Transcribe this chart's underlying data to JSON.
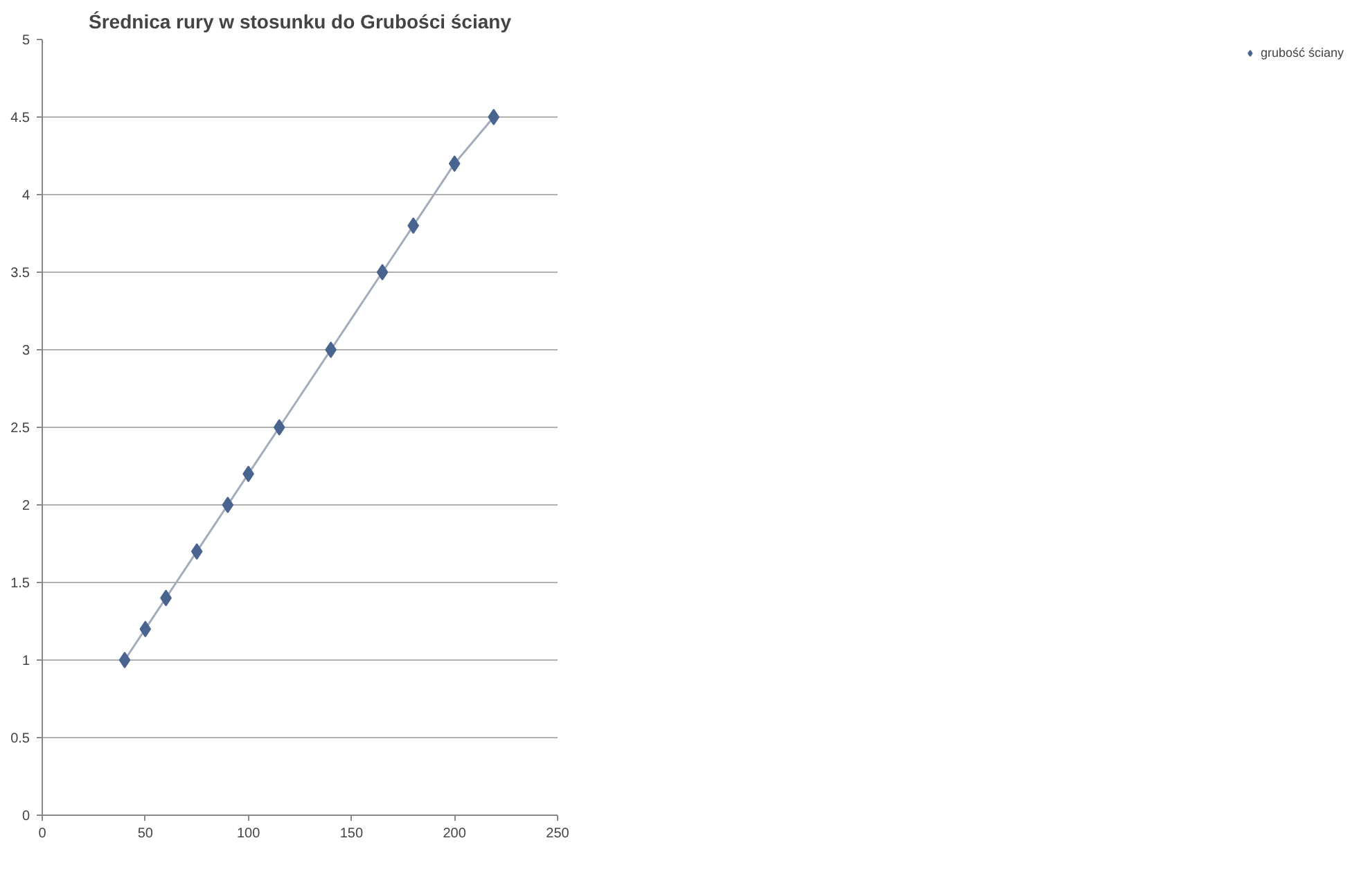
{
  "chart_data": {
    "type": "scatter",
    "title": "Średnica rury w stosunku do Grubości ściany",
    "x": [
      40,
      50,
      60,
      75,
      90,
      100,
      115,
      140,
      165,
      180,
      200,
      219
    ],
    "series": [
      {
        "type": "line",
        "color": "#a3abbd",
        "values": [
          1.0,
          1.2,
          1.4,
          1.7,
          2.0,
          2.2,
          2.5,
          3.0,
          3.5,
          3.8,
          4.2,
          4.5
        ],
        "marker": "none"
      },
      {
        "name": "grubość ściany",
        "color": "#4a6490",
        "values": [
          1.0,
          1.2,
          1.4,
          1.7,
          2.0,
          2.2,
          2.5,
          3.0,
          3.5,
          3.8,
          4.2,
          4.5
        ],
        "marker": "diamond"
      }
    ],
    "xlim": [
      0,
      250
    ],
    "xticks": [
      0,
      50,
      100,
      150,
      200,
      250
    ],
    "ylim": [
      0,
      5
    ],
    "yticks": [
      0,
      0.5,
      1,
      1.5,
      2,
      2.5,
      3,
      3.5,
      4,
      4.5,
      5
    ],
    "grid": "y",
    "legend": "right"
  }
}
